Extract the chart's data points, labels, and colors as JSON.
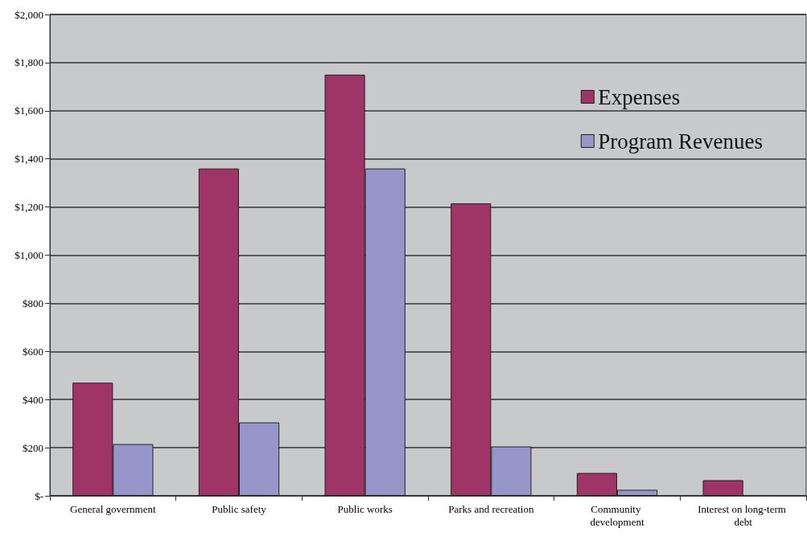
{
  "chart_data": {
    "type": "bar",
    "categories": [
      "General government",
      "Public safety",
      "Public works",
      "Parks and recreation",
      "Community development",
      "Interest on long-term debt"
    ],
    "series": [
      {
        "name": "Expenses",
        "color": "#9e3566",
        "values": [
          470,
          1360,
          1750,
          1215,
          95,
          65
        ]
      },
      {
        "name": "Program Revenues",
        "color": "#9696ca",
        "values": [
          215,
          305,
          1360,
          205,
          25,
          null
        ]
      }
    ],
    "ylim": [
      0,
      2000
    ],
    "yticks": [
      {
        "value": 0,
        "label": "$-"
      },
      {
        "value": 200,
        "label": "$200"
      },
      {
        "value": 400,
        "label": "$400"
      },
      {
        "value": 600,
        "label": "$600"
      },
      {
        "value": 800,
        "label": "$800"
      },
      {
        "value": 1000,
        "label": "$1,000"
      },
      {
        "value": 1200,
        "label": "$1,200"
      },
      {
        "value": 1400,
        "label": "$1,400"
      },
      {
        "value": 1600,
        "label": "$1,600"
      },
      {
        "value": 1800,
        "label": "$1,800"
      },
      {
        "value": 2000,
        "label": "$2,000"
      }
    ],
    "grid": "y",
    "legend": "top right"
  }
}
